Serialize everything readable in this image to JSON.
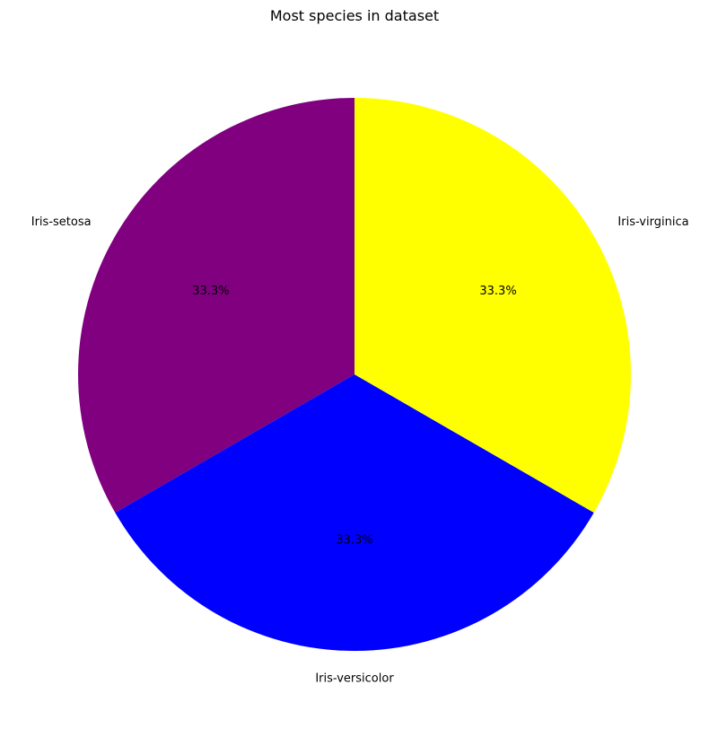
{
  "chart_data": {
    "type": "pie",
    "title": "Most species in dataset",
    "categories": [
      "Iris-setosa",
      "Iris-versicolor",
      "Iris-virginica"
    ],
    "values": [
      33.3,
      33.3,
      33.3
    ],
    "percent_labels": [
      "33.3%",
      "33.3%",
      "33.3%"
    ],
    "colors": [
      "#800080",
      "#0000ff",
      "#ffff00"
    ],
    "start_angle_deg": 90,
    "direction": "counterclockwise",
    "legend": "none"
  }
}
